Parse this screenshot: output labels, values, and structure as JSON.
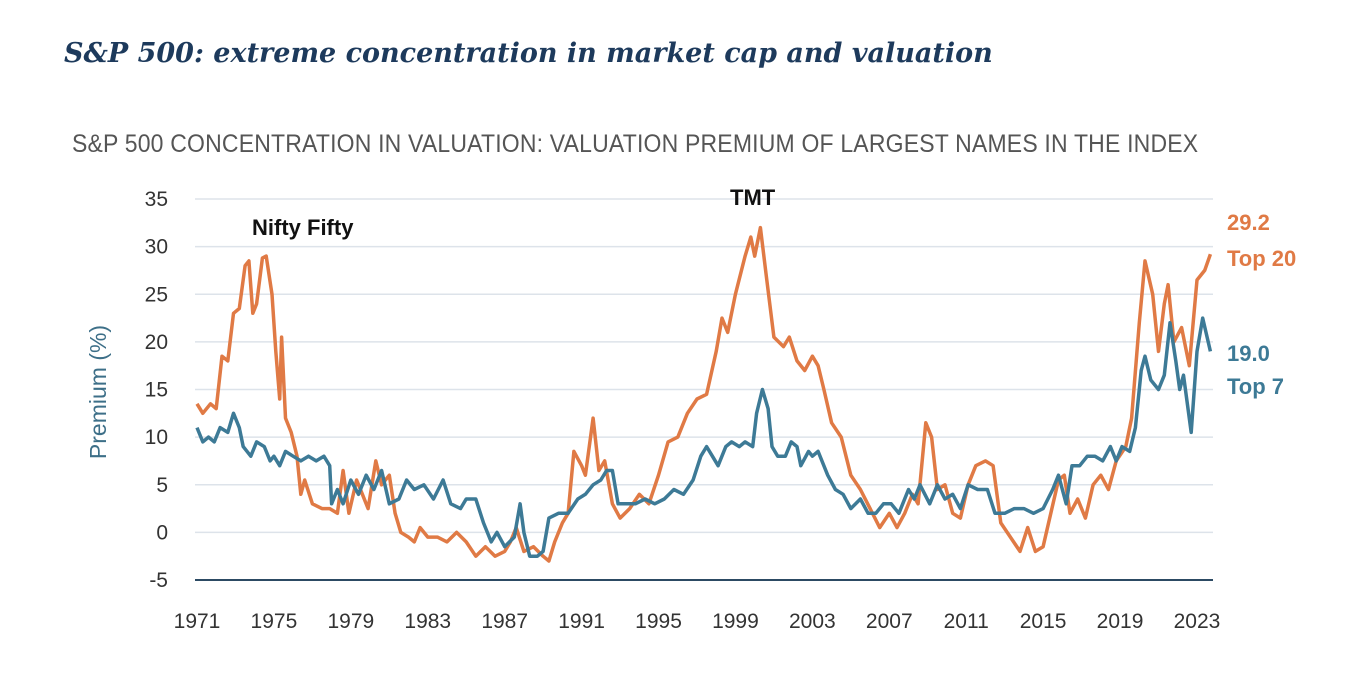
{
  "header": {
    "title": "S&P 500: extreme concentration in market cap and valuation"
  },
  "chart_data": {
    "type": "line",
    "title": "S&P 500 CONCENTRATION IN VALUATION: VALUATION PREMIUM OF LARGEST NAMES IN THE INDEX",
    "xlabel": "",
    "ylabel": "Premium (%)",
    "ylim": [
      -5,
      35
    ],
    "xlim": [
      1971,
      2023
    ],
    "yticks": [
      "35",
      "30",
      "25",
      "20",
      "15",
      "10",
      "5",
      "0",
      "-5"
    ],
    "yticks_values": [
      35,
      30,
      25,
      20,
      15,
      10,
      5,
      0,
      -5
    ],
    "xticks": [
      "1971",
      "1975",
      "1979",
      "1983",
      "1987",
      "1991",
      "1995",
      "1999",
      "2003",
      "2007",
      "2011",
      "2015",
      "2019",
      "2023"
    ],
    "grid": true,
    "annotations": [
      {
        "text": "Nifty Fifty",
        "x": 1975,
        "y": 32
      },
      {
        "text": "TMT",
        "x": 2000,
        "y": 35
      }
    ],
    "series": [
      {
        "name": "Top 20",
        "end_value": "29.2",
        "end_label": "Top 20",
        "color": "#e07a45",
        "points": [
          [
            1971,
            13.5
          ],
          [
            1971.3,
            12.5
          ],
          [
            1971.7,
            13.5
          ],
          [
            1972,
            13
          ],
          [
            1972.3,
            18.5
          ],
          [
            1972.6,
            18
          ],
          [
            1972.9,
            23
          ],
          [
            1973.2,
            23.5
          ],
          [
            1973.5,
            28
          ],
          [
            1973.7,
            28.5
          ],
          [
            1973.9,
            23
          ],
          [
            1974.1,
            24
          ],
          [
            1974.4,
            28.8
          ],
          [
            1974.6,
            29
          ],
          [
            1974.9,
            25
          ],
          [
            1975.1,
            19
          ],
          [
            1975.3,
            14
          ],
          [
            1975.4,
            20.5
          ],
          [
            1975.6,
            12
          ],
          [
            1975.9,
            10.5
          ],
          [
            1976.2,
            8
          ],
          [
            1976.4,
            4
          ],
          [
            1976.6,
            5.5
          ],
          [
            1977,
            3
          ],
          [
            1977.5,
            2.5
          ],
          [
            1977.9,
            2.5
          ],
          [
            1978.3,
            2
          ],
          [
            1978.6,
            6.5
          ],
          [
            1978.9,
            2
          ],
          [
            1979.3,
            5.5
          ],
          [
            1979.6,
            4
          ],
          [
            1979.9,
            2.5
          ],
          [
            1980.3,
            7.5
          ],
          [
            1980.6,
            5
          ],
          [
            1981,
            6
          ],
          [
            1981.3,
            2
          ],
          [
            1981.6,
            0
          ],
          [
            1982,
            -0.5
          ],
          [
            1982.3,
            -1
          ],
          [
            1982.6,
            0.5
          ],
          [
            1983,
            -0.5
          ],
          [
            1983.5,
            -0.5
          ],
          [
            1984,
            -1
          ],
          [
            1984.5,
            0
          ],
          [
            1985,
            -1
          ],
          [
            1985.5,
            -2.5
          ],
          [
            1986,
            -1.5
          ],
          [
            1986.5,
            -2.5
          ],
          [
            1987,
            -2
          ],
          [
            1987.3,
            -1
          ],
          [
            1987.6,
            0.5
          ],
          [
            1988,
            -2
          ],
          [
            1988.5,
            -1.5
          ],
          [
            1989,
            -2.5
          ],
          [
            1989.3,
            -3
          ],
          [
            1989.6,
            -1
          ],
          [
            1990,
            1
          ],
          [
            1990.3,
            2
          ],
          [
            1990.6,
            8.5
          ],
          [
            1991,
            7
          ],
          [
            1991.2,
            6
          ],
          [
            1991.6,
            12
          ],
          [
            1991.9,
            6.5
          ],
          [
            1992.2,
            7.5
          ],
          [
            1992.6,
            3
          ],
          [
            1993,
            1.5
          ],
          [
            1993.5,
            2.5
          ],
          [
            1994,
            4
          ],
          [
            1994.5,
            3
          ],
          [
            1995,
            6
          ],
          [
            1995.5,
            9.5
          ],
          [
            1996,
            10
          ],
          [
            1996.5,
            12.5
          ],
          [
            1997,
            14
          ],
          [
            1997.5,
            14.5
          ],
          [
            1998,
            19
          ],
          [
            1998.3,
            22.5
          ],
          [
            1998.6,
            21
          ],
          [
            1999,
            25
          ],
          [
            1999.5,
            29
          ],
          [
            1999.8,
            31
          ],
          [
            2000,
            29
          ],
          [
            2000.3,
            32
          ],
          [
            2000.6,
            27
          ],
          [
            2001,
            20.5
          ],
          [
            2001.5,
            19.5
          ],
          [
            2001.8,
            20.5
          ],
          [
            2002.2,
            18
          ],
          [
            2002.6,
            17
          ],
          [
            2003,
            18.5
          ],
          [
            2003.3,
            17.5
          ],
          [
            2003.6,
            15
          ],
          [
            2004,
            11.5
          ],
          [
            2004.5,
            10
          ],
          [
            2005,
            6
          ],
          [
            2005.5,
            4.5
          ],
          [
            2006,
            2.5
          ],
          [
            2006.5,
            0.5
          ],
          [
            2007,
            2
          ],
          [
            2007.4,
            0.5
          ],
          [
            2007.8,
            2
          ],
          [
            2008.2,
            4
          ],
          [
            2008.5,
            3
          ],
          [
            2008.9,
            11.5
          ],
          [
            2009.2,
            10
          ],
          [
            2009.5,
            4.5
          ],
          [
            2009.9,
            5
          ],
          [
            2010.3,
            2
          ],
          [
            2010.7,
            1.5
          ],
          [
            2011.1,
            5
          ],
          [
            2011.5,
            7
          ],
          [
            2012,
            7.5
          ],
          [
            2012.4,
            7
          ],
          [
            2012.8,
            1
          ],
          [
            2013.3,
            -0.5
          ],
          [
            2013.8,
            -2
          ],
          [
            2014.2,
            0.5
          ],
          [
            2014.6,
            -2
          ],
          [
            2015,
            -1.5
          ],
          [
            2015.4,
            2
          ],
          [
            2015.8,
            5.5
          ],
          [
            2016.1,
            6
          ],
          [
            2016.4,
            2
          ],
          [
            2016.8,
            3.5
          ],
          [
            2017.2,
            1.5
          ],
          [
            2017.6,
            5
          ],
          [
            2018,
            6
          ],
          [
            2018.4,
            4.5
          ],
          [
            2018.8,
            7.5
          ],
          [
            2019.3,
            9
          ],
          [
            2019.6,
            12
          ],
          [
            2020,
            22
          ],
          [
            2020.3,
            28.5
          ],
          [
            2020.7,
            25
          ],
          [
            2021,
            19
          ],
          [
            2021.3,
            24
          ],
          [
            2021.5,
            26
          ],
          [
            2021.8,
            20
          ],
          [
            2022.2,
            21.5
          ],
          [
            2022.6,
            17.5
          ],
          [
            2023,
            26.5
          ],
          [
            2023.4,
            27.5
          ],
          [
            2023.7,
            29.2
          ]
        ]
      },
      {
        "name": "Top 7",
        "end_value": "19.0",
        "end_label": "Top 7",
        "color": "#3d7a96",
        "points": [
          [
            1971,
            11
          ],
          [
            1971.3,
            9.5
          ],
          [
            1971.6,
            10
          ],
          [
            1971.9,
            9.5
          ],
          [
            1972.2,
            11
          ],
          [
            1972.6,
            10.5
          ],
          [
            1972.9,
            12.5
          ],
          [
            1973.2,
            11
          ],
          [
            1973.4,
            9
          ],
          [
            1973.8,
            8
          ],
          [
            1974.1,
            9.5
          ],
          [
            1974.5,
            9
          ],
          [
            1974.8,
            7.5
          ],
          [
            1975,
            8
          ],
          [
            1975.3,
            7
          ],
          [
            1975.6,
            8.5
          ],
          [
            1976,
            8
          ],
          [
            1976.4,
            7.5
          ],
          [
            1976.8,
            8
          ],
          [
            1977.2,
            7.5
          ],
          [
            1977.6,
            8
          ],
          [
            1977.9,
            7
          ],
          [
            1978,
            3
          ],
          [
            1978.3,
            4.5
          ],
          [
            1978.6,
            3
          ],
          [
            1979,
            5.5
          ],
          [
            1979.4,
            4
          ],
          [
            1979.8,
            6
          ],
          [
            1980.2,
            4.5
          ],
          [
            1980.6,
            6.5
          ],
          [
            1981,
            3
          ],
          [
            1981.5,
            3.5
          ],
          [
            1981.9,
            5.5
          ],
          [
            1982.3,
            4.5
          ],
          [
            1982.8,
            5
          ],
          [
            1983.3,
            3.5
          ],
          [
            1983.8,
            5.5
          ],
          [
            1984.2,
            3
          ],
          [
            1984.7,
            2.5
          ],
          [
            1985,
            3.5
          ],
          [
            1985.5,
            3.5
          ],
          [
            1985.9,
            1
          ],
          [
            1986.3,
            -1
          ],
          [
            1986.6,
            0
          ],
          [
            1987,
            -1.5
          ],
          [
            1987.5,
            -0.5
          ],
          [
            1987.8,
            3
          ],
          [
            1988,
            0
          ],
          [
            1988.3,
            -2.5
          ],
          [
            1988.7,
            -2.5
          ],
          [
            1989,
            -2
          ],
          [
            1989.3,
            1.5
          ],
          [
            1989.8,
            2
          ],
          [
            1990.3,
            2
          ],
          [
            1990.8,
            3.5
          ],
          [
            1991.2,
            4
          ],
          [
            1991.6,
            5
          ],
          [
            1992,
            5.5
          ],
          [
            1992.3,
            6.5
          ],
          [
            1992.6,
            6.5
          ],
          [
            1992.9,
            3
          ],
          [
            1993.3,
            3
          ],
          [
            1993.8,
            3
          ],
          [
            1994.3,
            3.5
          ],
          [
            1994.8,
            3
          ],
          [
            1995.3,
            3.5
          ],
          [
            1995.8,
            4.5
          ],
          [
            1996.3,
            4
          ],
          [
            1996.8,
            5.5
          ],
          [
            1997.2,
            8
          ],
          [
            1997.5,
            9
          ],
          [
            1997.8,
            8
          ],
          [
            1998.1,
            7
          ],
          [
            1998.5,
            9
          ],
          [
            1998.8,
            9.5
          ],
          [
            1999.2,
            9
          ],
          [
            1999.5,
            9.5
          ],
          [
            1999.9,
            9
          ],
          [
            2000.1,
            12.5
          ],
          [
            2000.4,
            15
          ],
          [
            2000.7,
            13
          ],
          [
            2000.9,
            9
          ],
          [
            2001.2,
            8
          ],
          [
            2001.6,
            8
          ],
          [
            2001.9,
            9.5
          ],
          [
            2002.2,
            9
          ],
          [
            2002.4,
            7
          ],
          [
            2002.8,
            8.5
          ],
          [
            2003,
            8
          ],
          [
            2003.3,
            8.5
          ],
          [
            2003.8,
            6
          ],
          [
            2004.2,
            4.5
          ],
          [
            2004.6,
            4
          ],
          [
            2005,
            2.5
          ],
          [
            2005.5,
            3.5
          ],
          [
            2005.9,
            2
          ],
          [
            2006.3,
            2
          ],
          [
            2006.7,
            3
          ],
          [
            2007.1,
            3
          ],
          [
            2007.5,
            2
          ],
          [
            2008,
            4.5
          ],
          [
            2008.3,
            3.5
          ],
          [
            2008.6,
            5
          ],
          [
            2009.1,
            3
          ],
          [
            2009.5,
            5
          ],
          [
            2009.9,
            3.5
          ],
          [
            2010.3,
            4
          ],
          [
            2010.7,
            2.5
          ],
          [
            2011.1,
            5
          ],
          [
            2011.6,
            4.5
          ],
          [
            2012.1,
            4.5
          ],
          [
            2012.5,
            2
          ],
          [
            2013,
            2
          ],
          [
            2013.5,
            2.5
          ],
          [
            2014,
            2.5
          ],
          [
            2014.5,
            2
          ],
          [
            2015,
            2.5
          ],
          [
            2015.5,
            4.5
          ],
          [
            2015.8,
            6
          ],
          [
            2016.2,
            3
          ],
          [
            2016.5,
            7
          ],
          [
            2016.9,
            7
          ],
          [
            2017.3,
            8
          ],
          [
            2017.7,
            8
          ],
          [
            2018.1,
            7.5
          ],
          [
            2018.5,
            9
          ],
          [
            2018.8,
            7.5
          ],
          [
            2019.1,
            9
          ],
          [
            2019.5,
            8.5
          ],
          [
            2019.8,
            11
          ],
          [
            2020.1,
            17
          ],
          [
            2020.3,
            18.5
          ],
          [
            2020.6,
            16
          ],
          [
            2021,
            15
          ],
          [
            2021.3,
            16.5
          ],
          [
            2021.6,
            22
          ],
          [
            2021.9,
            18
          ],
          [
            2022.1,
            15
          ],
          [
            2022.3,
            16.5
          ],
          [
            2022.7,
            10.5
          ],
          [
            2023,
            19
          ],
          [
            2023.3,
            22.5
          ],
          [
            2023.7,
            19
          ]
        ]
      }
    ]
  }
}
